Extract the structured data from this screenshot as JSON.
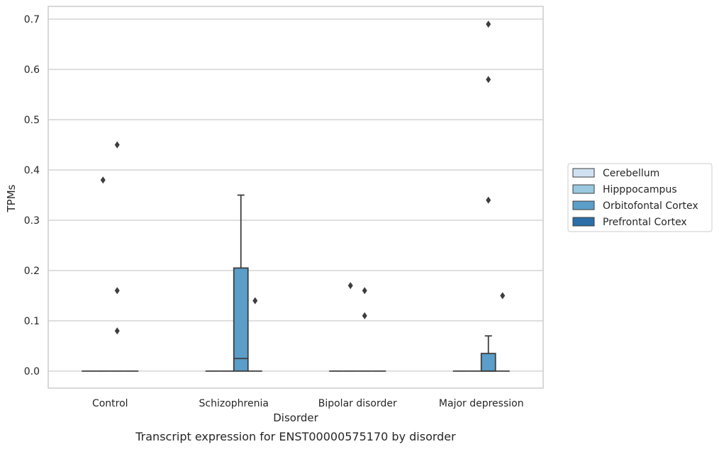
{
  "chart_data": {
    "type": "box",
    "caption": "Transcript expression for ENST00000575170 by disorder",
    "xlabel": "Disorder",
    "ylabel": "TPMs",
    "ylim": [
      -0.035,
      0.725
    ],
    "yticks": [
      0.0,
      0.1,
      0.2,
      0.3,
      0.4,
      0.5,
      0.6,
      0.7
    ],
    "ytick_labels": [
      "0.0",
      "0.1",
      "0.2",
      "0.3",
      "0.4",
      "0.5",
      "0.6",
      "0.7"
    ],
    "grid": "horizontal",
    "legend_position": "right",
    "categories": [
      "Control",
      "Schizophrenia",
      "Bipolar disorder",
      "Major depression"
    ],
    "series": [
      {
        "name": "Cerebellum",
        "color": "#d0e1f2",
        "boxes": [
          {
            "category": "Control",
            "whisker_low": 0,
            "q1": 0,
            "median": 0,
            "q3": 0,
            "whisker_high": 0,
            "outliers": []
          },
          {
            "category": "Schizophrenia",
            "whisker_low": 0,
            "q1": 0,
            "median": 0,
            "q3": 0,
            "whisker_high": 0,
            "outliers": []
          },
          {
            "category": "Bipolar disorder",
            "whisker_low": 0,
            "q1": 0,
            "median": 0,
            "q3": 0,
            "whisker_high": 0,
            "outliers": []
          },
          {
            "category": "Major depression",
            "whisker_low": 0,
            "q1": 0,
            "median": 0,
            "q3": 0,
            "whisker_high": 0,
            "outliers": []
          }
        ]
      },
      {
        "name": "Hipppocampus",
        "color": "#9ac8e0",
        "boxes": [
          {
            "category": "Control",
            "whisker_low": 0,
            "q1": 0,
            "median": 0,
            "q3": 0,
            "whisker_high": 0,
            "outliers": [
              0.38
            ]
          },
          {
            "category": "Schizophrenia",
            "whisker_low": 0,
            "q1": 0,
            "median": 0,
            "q3": 0,
            "whisker_high": 0,
            "outliers": []
          },
          {
            "category": "Bipolar disorder",
            "whisker_low": 0,
            "q1": 0,
            "median": 0,
            "q3": 0,
            "whisker_high": 0,
            "outliers": [
              0.17
            ]
          },
          {
            "category": "Major depression",
            "whisker_low": 0,
            "q1": 0,
            "median": 0,
            "q3": 0,
            "whisker_high": 0,
            "outliers": []
          }
        ]
      },
      {
        "name": "Orbitofontal Cortex",
        "color": "#5a9ec9",
        "boxes": [
          {
            "category": "Control",
            "whisker_low": 0,
            "q1": 0,
            "median": 0,
            "q3": 0,
            "whisker_high": 0,
            "outliers": [
              0.45,
              0.16,
              0.08
            ]
          },
          {
            "category": "Schizophrenia",
            "whisker_low": 0,
            "q1": 0,
            "median": 0.025,
            "q3": 0.205,
            "whisker_high": 0.35,
            "outliers": []
          },
          {
            "category": "Bipolar disorder",
            "whisker_low": 0,
            "q1": 0,
            "median": 0,
            "q3": 0,
            "whisker_high": 0,
            "outliers": [
              0.16,
              0.11
            ]
          },
          {
            "category": "Major depression",
            "whisker_low": 0,
            "q1": 0,
            "median": 0,
            "q3": 0.035,
            "whisker_high": 0.07,
            "outliers": [
              0.69,
              0.58,
              0.34
            ]
          }
        ]
      },
      {
        "name": "Prefrontal Cortex",
        "color": "#2b6ea8",
        "boxes": [
          {
            "category": "Control",
            "whisker_low": 0,
            "q1": 0,
            "median": 0,
            "q3": 0,
            "whisker_high": 0,
            "outliers": []
          },
          {
            "category": "Schizophrenia",
            "whisker_low": 0,
            "q1": 0,
            "median": 0,
            "q3": 0,
            "whisker_high": 0,
            "outliers": [
              0.14
            ]
          },
          {
            "category": "Bipolar disorder",
            "whisker_low": 0,
            "q1": 0,
            "median": 0,
            "q3": 0,
            "whisker_high": 0,
            "outliers": []
          },
          {
            "category": "Major depression",
            "whisker_low": 0,
            "q1": 0,
            "median": 0,
            "q3": 0,
            "whisker_high": 0,
            "outliers": [
              0.15
            ]
          }
        ]
      }
    ]
  }
}
